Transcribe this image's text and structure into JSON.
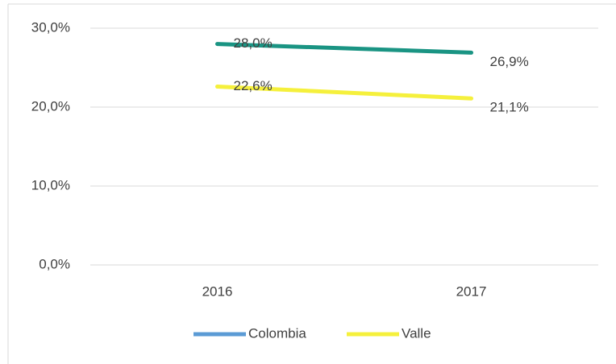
{
  "chart_data": {
    "type": "line",
    "categories": [
      "2016",
      "2017"
    ],
    "series": [
      {
        "name": "Colombia",
        "color": "#1a9483",
        "legend_color": "#5b9bd5",
        "values": [
          28.0,
          26.9
        ],
        "value_labels": [
          "28,0%",
          "26,9%"
        ]
      },
      {
        "name": "Valle",
        "color": "#f5f03c",
        "legend_color": "#f5f03c",
        "values": [
          22.6,
          21.1
        ],
        "value_labels": [
          "22,6%",
          "21,1%"
        ]
      }
    ],
    "ylim": [
      0,
      30
    ],
    "yticks": [
      {
        "value": 0,
        "label": "0,0%"
      },
      {
        "value": 10,
        "label": "10,0%"
      },
      {
        "value": 20,
        "label": "20,0%"
      },
      {
        "value": 30,
        "label": "30,0%"
      }
    ],
    "grid": true,
    "legend": "bottom"
  }
}
